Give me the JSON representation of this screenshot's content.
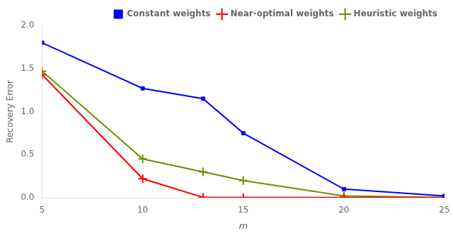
{
  "chart_data": {
    "type": "line",
    "x": [
      5,
      10,
      13,
      15,
      20,
      25
    ],
    "series": [
      {
        "name": "Constant weights",
        "color": "#0000FF",
        "marker": "square",
        "values": [
          1.8,
          1.27,
          1.15,
          0.75,
          0.1,
          0.02
        ]
      },
      {
        "name": "Near-optimal weights",
        "color": "#FF0000",
        "marker": "plus",
        "values": [
          1.43,
          0.22,
          0.005,
          0.003,
          0.002,
          0.001
        ]
      },
      {
        "name": "Heuristic weights",
        "color": "#6B8E00",
        "marker": "plus",
        "values": [
          1.47,
          0.45,
          0.3,
          0.2,
          0.02,
          0.005
        ]
      }
    ],
    "xlabel": "m",
    "ylabel": "Recovery Error",
    "xlim": [
      5,
      25
    ],
    "ylim": [
      0,
      2
    ],
    "xticks": [
      5,
      10,
      15,
      20,
      25
    ],
    "yticks": [
      {
        "value": 0,
        "label": "0.0"
      },
      0.5,
      {
        "value": 1.0,
        "label": "1.0"
      },
      1.5,
      {
        "value": 2.0,
        "label": "2.0"
      }
    ],
    "grid": false,
    "legend": "upper right"
  }
}
